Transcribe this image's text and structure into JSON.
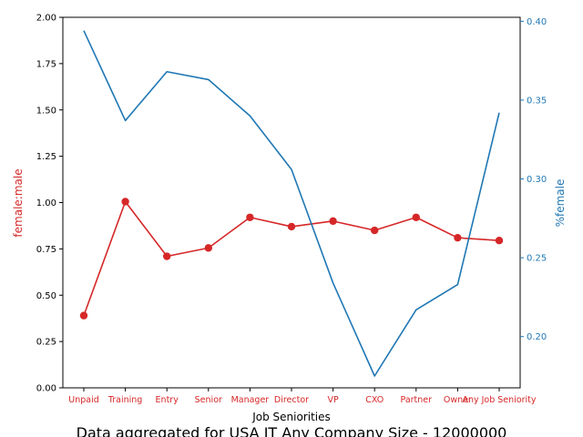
{
  "chart_data": {
    "type": "line",
    "caption": "Data aggregated for USA IT Any Company Size - 12000000",
    "xlabel": "Job Seniorities",
    "categories": [
      "Unpaid",
      "Training",
      "Entry",
      "Senior",
      "Manager",
      "Director",
      "VP",
      "CXO",
      "Partner",
      "Owner",
      "Any Job Seniority"
    ],
    "left_axis": {
      "label": "female:male",
      "ylim": [
        0,
        2.0
      ],
      "ticks": [
        "0.00",
        "0.25",
        "0.50",
        "0.75",
        "1.00",
        "1.25",
        "1.50",
        "1.75",
        "2.00"
      ],
      "color": "#d62728"
    },
    "right_axis": {
      "label": "%female",
      "ylim": [
        0.1675,
        0.4025
      ],
      "ticks": [
        "0.20",
        "0.25",
        "0.30",
        "0.35",
        "0.40"
      ],
      "color": "#1f77b4"
    },
    "series": [
      {
        "axis": "left",
        "color": "#d62728",
        "marker": "circle",
        "values": [
          0.39,
          1.005,
          0.71,
          0.755,
          0.92,
          0.87,
          0.9,
          0.85,
          0.92,
          0.81,
          0.795
        ]
      },
      {
        "axis": "right",
        "color": "#1f77b4",
        "marker": "none",
        "values": [
          0.394,
          0.337,
          0.368,
          0.363,
          0.34,
          0.306,
          0.234,
          0.175,
          0.217,
          0.233,
          0.342
        ]
      }
    ]
  }
}
